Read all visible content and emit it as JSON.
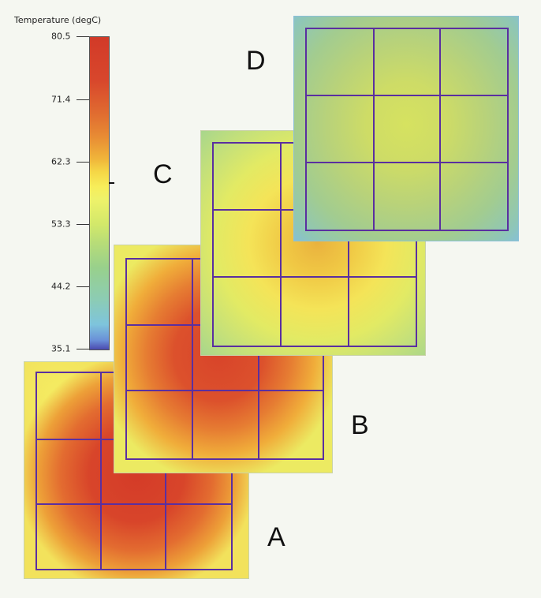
{
  "legend": {
    "title": "Temperature (degC)",
    "ticks": [
      "80.5",
      "71.4",
      "62.3",
      "53.3",
      "44.2",
      "35.1"
    ]
  },
  "panels": [
    {
      "label": "A"
    },
    {
      "label": "B"
    },
    {
      "label": "C"
    },
    {
      "label": "D"
    }
  ]
}
